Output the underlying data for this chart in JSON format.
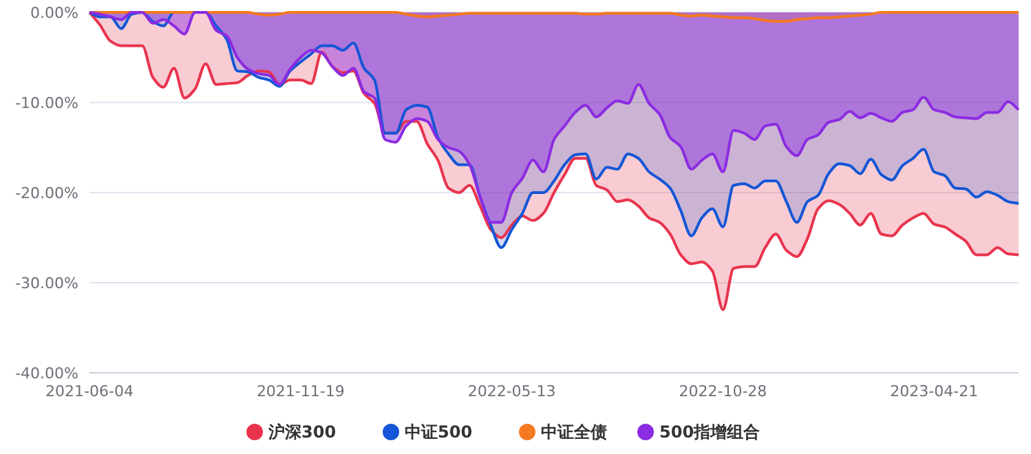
{
  "chart_data": {
    "type": "area",
    "categories": [
      "2021-06-04",
      null,
      null,
      null,
      null,
      null,
      null,
      null,
      null,
      null,
      null,
      null,
      null,
      null,
      null,
      null,
      null,
      null,
      null,
      null,
      "2021-11-19",
      null,
      null,
      null,
      null,
      null,
      null,
      null,
      null,
      null,
      null,
      null,
      null,
      null,
      null,
      null,
      null,
      null,
      null,
      null,
      "2022-05-13",
      null,
      null,
      null,
      null,
      null,
      null,
      null,
      null,
      null,
      null,
      null,
      null,
      null,
      null,
      null,
      null,
      null,
      null,
      null,
      "2022-10-28",
      null,
      null,
      null,
      null,
      null,
      null,
      null,
      null,
      null,
      null,
      null,
      null,
      null,
      null,
      null,
      null,
      null,
      null,
      null,
      "2023-04-21",
      null,
      null,
      null,
      null,
      null,
      null,
      null,
      null
    ],
    "series": [
      {
        "name": "沪深300",
        "color": "#e8344e",
        "values": [
          0,
          -1.4,
          -3.2,
          -3.7,
          -3.7,
          -3.7,
          -7.2,
          -8.3,
          -6.2,
          -9.5,
          -8.5,
          -5.7,
          -8.0,
          -7.9,
          -7.8,
          -7.0,
          -6.5,
          -6.6,
          -8.0,
          -7.5,
          -7.5,
          -7.9,
          -4.4,
          -6.0,
          -6.7,
          -6.5,
          -9.0,
          -10.1,
          -13.4,
          -13.4,
          -12.1,
          -12.1,
          -14.6,
          -16.4,
          -19.5,
          -20.0,
          -19.2,
          -21.5,
          -24.1,
          -25.0,
          -23.6,
          -22.6,
          -23.1,
          -22.3,
          -20.0,
          -18.0,
          -16.2,
          -16.2,
          -19.2,
          -19.7,
          -21.0,
          -20.8,
          -21.5,
          -22.8,
          -23.3,
          -24.6,
          -26.9,
          -27.9,
          -27.7,
          -28.7,
          -33.0,
          -28.4,
          -28.2,
          -28.2,
          -26.1,
          -24.6,
          -26.4,
          -27.1,
          -25.1,
          -21.8,
          -20.9,
          -21.3,
          -22.3,
          -23.6,
          -22.3,
          -24.6,
          -24.8,
          -23.6,
          -22.8,
          -22.3,
          -23.5,
          -23.8,
          -24.6,
          -25.4,
          -26.9,
          -26.9,
          -26.1,
          -26.8,
          -26.9
        ]
      },
      {
        "name": "中证500",
        "color": "#1456d6",
        "values": [
          0,
          -0.5,
          -0.5,
          -1.8,
          -0.2,
          0,
          -1.0,
          -1.5,
          0,
          0,
          0,
          0,
          -1.5,
          -3.0,
          -6.5,
          -6.6,
          -7.2,
          -7.5,
          -8.2,
          -6.5,
          -5.5,
          -4.6,
          -3.7,
          -3.7,
          -4.2,
          -3.4,
          -6.2,
          -7.5,
          -13.4,
          -13.4,
          -10.8,
          -10.3,
          -10.5,
          -13.9,
          -15.7,
          -16.9,
          -16.9,
          -20.5,
          -23.6,
          -26.1,
          -24.1,
          -22.3,
          -20.0,
          -20.0,
          -18.7,
          -16.9,
          -15.8,
          -15.7,
          -18.5,
          -17.2,
          -17.4,
          -15.7,
          -16.2,
          -17.7,
          -18.5,
          -19.5,
          -22.0,
          -24.8,
          -22.8,
          -21.8,
          -23.8,
          -19.2,
          -19.0,
          -19.5,
          -18.7,
          -18.7,
          -21.0,
          -23.3,
          -21.0,
          -20.3,
          -17.9,
          -16.8,
          -17.0,
          -17.9,
          -16.3,
          -18.0,
          -18.6,
          -17.0,
          -16.2,
          -15.2,
          -17.7,
          -18.1,
          -19.5,
          -19.6,
          -20.5,
          -19.9,
          -20.3,
          -21.0,
          -21.2
        ]
      },
      {
        "name": "中证全债",
        "color": "#f47920",
        "values": [
          0,
          0,
          0,
          0,
          0,
          0,
          0,
          0,
          0,
          0,
          0,
          0,
          0,
          0,
          0,
          0,
          -0.2,
          -0.3,
          -0.2,
          0,
          0,
          0,
          0,
          0,
          0,
          0,
          0,
          0,
          0,
          0,
          -0.2,
          -0.4,
          -0.5,
          -0.4,
          -0.3,
          -0.2,
          -0.1,
          -0.1,
          -0.1,
          -0.1,
          -0.1,
          -0.1,
          -0.1,
          -0.1,
          -0.1,
          -0.1,
          -0.1,
          -0.2,
          -0.2,
          -0.1,
          -0.1,
          -0.1,
          -0.1,
          -0.1,
          -0.1,
          -0.1,
          -0.3,
          -0.4,
          -0.3,
          -0.4,
          -0.5,
          -0.6,
          -0.6,
          -0.7,
          -0.9,
          -1.0,
          -1.0,
          -0.8,
          -0.7,
          -0.6,
          -0.6,
          -0.5,
          -0.4,
          -0.3,
          -0.2,
          0,
          0,
          0,
          0,
          0,
          0,
          0,
          0,
          0,
          0,
          0,
          0,
          0,
          0
        ]
      },
      {
        "name": "500指增组合",
        "color": "#8b2be2",
        "values": [
          0,
          -0.2,
          -0.5,
          -0.8,
          0,
          0,
          -1.2,
          -0.8,
          -1.5,
          -2.4,
          0,
          0,
          -2.0,
          -2.6,
          -5.0,
          -6.3,
          -6.8,
          -7.0,
          -8.0,
          -6.3,
          -5.0,
          -4.2,
          -4.5,
          -6.0,
          -7.0,
          -6.2,
          -8.8,
          -9.5,
          -14.1,
          -14.4,
          -12.6,
          -11.8,
          -12.1,
          -14.1,
          -15.0,
          -15.4,
          -16.9,
          -20.5,
          -23.3,
          -23.3,
          -20.0,
          -18.4,
          -16.4,
          -17.7,
          -14.1,
          -12.6,
          -11.1,
          -10.3,
          -11.6,
          -10.6,
          -9.8,
          -10.1,
          -8.0,
          -10.1,
          -11.3,
          -13.9,
          -14.9,
          -17.4,
          -16.4,
          -15.7,
          -17.7,
          -13.1,
          -13.4,
          -14.1,
          -12.6,
          -12.4,
          -14.9,
          -15.9,
          -14.1,
          -13.6,
          -12.2,
          -11.9,
          -11.0,
          -11.7,
          -11.2,
          -11.7,
          -12.1,
          -11.1,
          -10.8,
          -9.4,
          -10.8,
          -11.1,
          -11.6,
          -11.7,
          -11.8,
          -11.1,
          -11.1,
          -9.9,
          -10.8
        ]
      }
    ],
    "ylim": [
      -40,
      0
    ],
    "yticks": [
      {
        "value": 0,
        "label": "0.00%"
      },
      {
        "value": -10,
        "label": "-10.00%"
      },
      {
        "value": -20,
        "label": "-20.00%"
      },
      {
        "value": -30,
        "label": "-30.00%"
      },
      {
        "value": -40,
        "label": "-40.00%"
      }
    ],
    "grid": "y",
    "legend": "bottom"
  }
}
